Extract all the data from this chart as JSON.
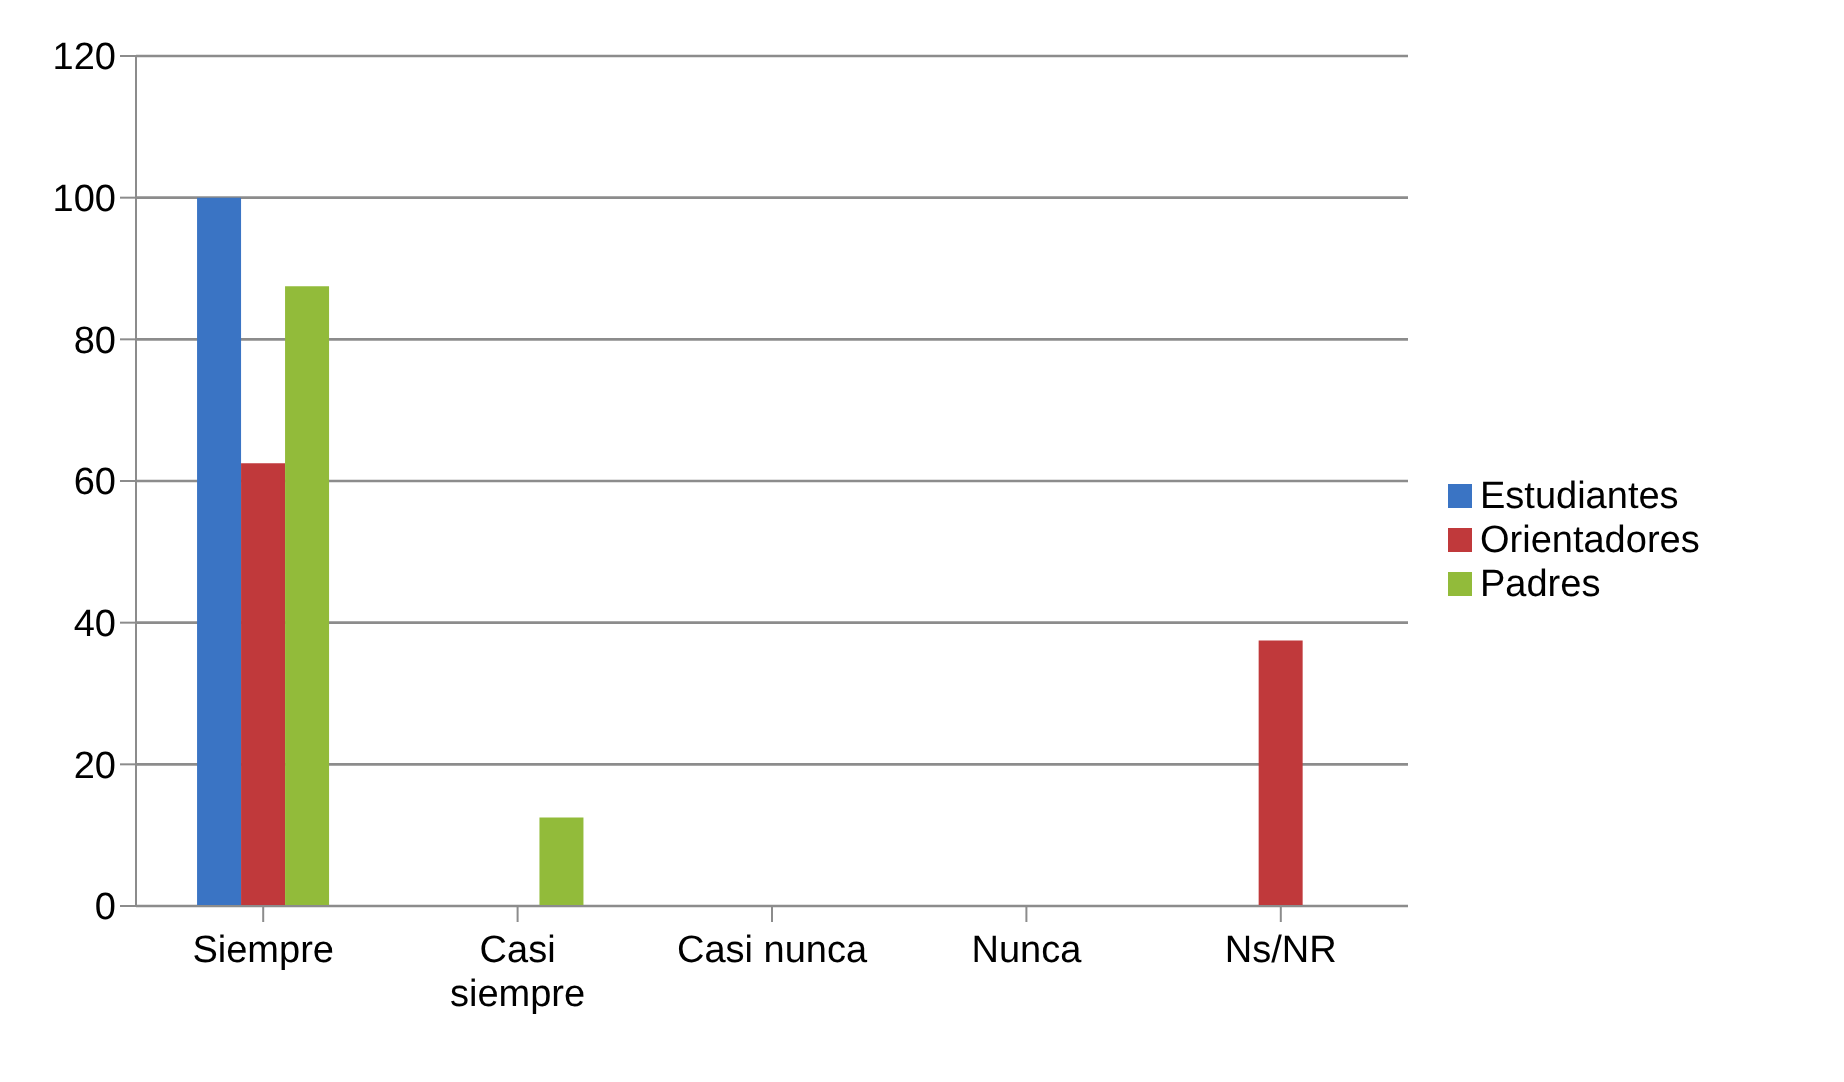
{
  "chart_data": {
    "type": "bar",
    "categories": [
      "Siempre",
      "Casi siempre",
      "Casi nunca",
      "Nunca",
      "Ns/NR"
    ],
    "series": [
      {
        "name": "Estudiantes",
        "color": "#3a74c4",
        "values": [
          100,
          0,
          0,
          0,
          0
        ]
      },
      {
        "name": "Orientadores",
        "color": "#c0393b",
        "values": [
          62.5,
          0,
          0,
          0,
          37.5
        ]
      },
      {
        "name": "Padres",
        "color": "#92bb3a",
        "values": [
          87.5,
          12.5,
          0,
          0,
          0
        ]
      }
    ],
    "ylim": [
      0,
      120
    ],
    "yticks": [
      0,
      20,
      40,
      60,
      80,
      100,
      120
    ],
    "grid": "y",
    "legend": "right"
  }
}
